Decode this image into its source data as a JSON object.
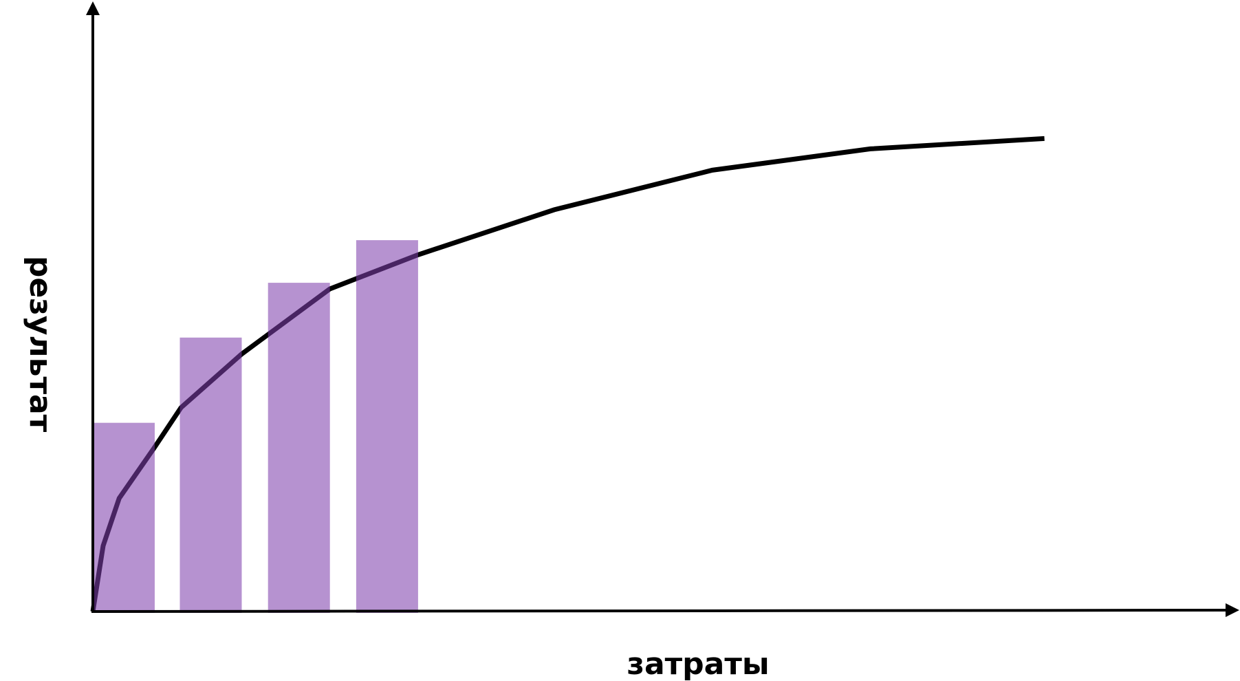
{
  "chart_data": {
    "type": "bar",
    "x_label": "затраты",
    "y_label": "результат",
    "xlim": [
      0,
      100
    ],
    "ylim": [
      0,
      100
    ],
    "x": [
      2.7,
      10.3,
      18.0,
      25.7
    ],
    "values": [
      31,
      45,
      54,
      61
    ],
    "color": "#7e3fad",
    "line": {
      "color": "#000000",
      "x": [
        0,
        0.9,
        2.3,
        5.4,
        7.7,
        13.0,
        20.7,
        28.4,
        40.3,
        54.1,
        67.9,
        83.1
      ],
      "values": [
        0,
        10.8,
        18.6,
        27.0,
        33.5,
        42.3,
        53.0,
        58.6,
        66.0,
        72.5,
        76.0,
        77.7
      ]
    }
  }
}
